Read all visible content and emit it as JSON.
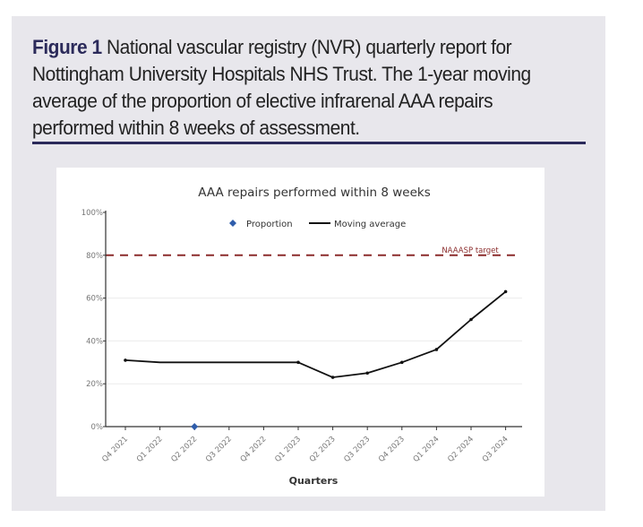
{
  "caption": {
    "label": "Figure 1",
    "text": " National vascular registry (NVR) quarterly report for Nottingham University Hospitals NHS Trust. The 1-year moving average of the proportion of elective infrarenal AAA repairs performed within 8 weeks of assessment."
  },
  "colors": {
    "caption_label": "#2b2a5a",
    "moving_average": "#111111",
    "proportion": "#2f5dab",
    "target": "#8b2c2c"
  },
  "chart_data": {
    "type": "line",
    "title": "AAA repairs performed within 8 weeks",
    "xlabel": "Quarters",
    "ylabel": "",
    "ylim": [
      0,
      100
    ],
    "yticks": [
      0,
      20,
      40,
      60,
      80,
      100
    ],
    "ytick_labels": [
      "0%",
      "20%",
      "40%",
      "60%",
      "80%",
      "100%"
    ],
    "grid": true,
    "legend": {
      "placement": "top-center",
      "entries": [
        "Proportion",
        "Moving average"
      ]
    },
    "categories": [
      "Q4 2021",
      "Q1 2022",
      "Q2 2022",
      "Q3 2022",
      "Q4 2022",
      "Q1 2023",
      "Q2 2023",
      "Q3 2023",
      "Q4 2023",
      "Q1 2024",
      "Q2 2024",
      "Q3 2024"
    ],
    "series": [
      {
        "name": "Moving average",
        "style": "line",
        "values": [
          31,
          30,
          30,
          30,
          30,
          30,
          23,
          25,
          30,
          36,
          50,
          63
        ],
        "markers": [
          true,
          false,
          false,
          false,
          false,
          true,
          true,
          true,
          true,
          true,
          true,
          true
        ]
      },
      {
        "name": "Proportion",
        "style": "diamond",
        "points": [
          {
            "x": "Q2 2022",
            "y": 0
          }
        ]
      }
    ],
    "reference_line": {
      "label": "NAAASP target",
      "value": 80,
      "style": "dashed"
    }
  }
}
